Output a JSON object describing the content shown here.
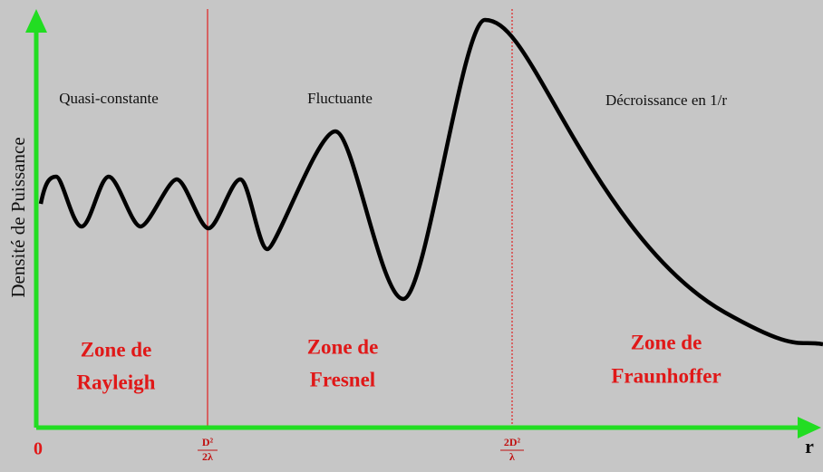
{
  "axis": {
    "y_label": "Densité de Puissance",
    "x_label": "r",
    "origin": "0"
  },
  "boundaries": [
    {
      "numerator": "D²",
      "denominator": "2λ"
    },
    {
      "numerator": "2D²",
      "denominator": "λ"
    }
  ],
  "zones": [
    {
      "behavior": "Quasi-constante",
      "name": [
        "Zone de",
        "Rayleigh"
      ]
    },
    {
      "behavior": "Fluctuante",
      "name": [
        "Zone de",
        "Fresnel"
      ]
    },
    {
      "behavior": "Décroissance en 1/r",
      "name": [
        "Zone de",
        "Fraunhoffer"
      ]
    }
  ]
}
